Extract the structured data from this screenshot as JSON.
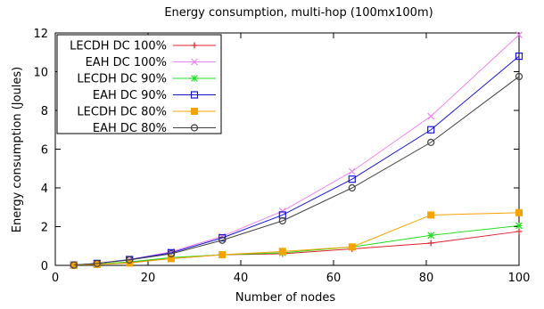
{
  "chart_data": {
    "type": "line",
    "title": "Energy consumption, multi-hop (100mx100m)",
    "xlabel": "Number of nodes",
    "ylabel": "Energy consumption (Joules)",
    "xlim": [
      0,
      100
    ],
    "ylim": [
      0,
      12
    ],
    "xticks": [
      0,
      20,
      40,
      60,
      80,
      100
    ],
    "yticks": [
      0,
      2,
      4,
      6,
      8,
      10,
      12
    ],
    "grid": false,
    "legend_position": "top-left",
    "x": [
      4,
      9,
      16,
      25,
      36,
      49,
      64,
      81,
      100
    ],
    "series": [
      {
        "name": "LECDH DC 100%",
        "color": "#e0202a",
        "marker": "plus",
        "values": [
          0.01,
          0.05,
          0.15,
          0.35,
          0.55,
          0.6,
          0.85,
          1.15,
          1.75
        ]
      },
      {
        "name": "EAH DC 100%",
        "color": "#ee82ee",
        "marker": "cross",
        "values": [
          0.02,
          0.1,
          0.3,
          0.7,
          1.5,
          2.8,
          4.85,
          7.7,
          11.9
        ]
      },
      {
        "name": "LECDH DC 90%",
        "color": "#22dd22",
        "marker": "star",
        "values": [
          0.01,
          0.06,
          0.18,
          0.4,
          0.55,
          0.65,
          0.95,
          1.55,
          2.05
        ]
      },
      {
        "name": "EAH DC 90%",
        "color": "#1515d8",
        "marker": "square-open",
        "values": [
          0.02,
          0.1,
          0.3,
          0.65,
          1.42,
          2.6,
          4.45,
          7.0,
          10.8
        ]
      },
      {
        "name": "LECDH DC 80%",
        "color": "#f5a300",
        "marker": "square-filled",
        "values": [
          0.01,
          0.05,
          0.12,
          0.35,
          0.55,
          0.72,
          0.95,
          2.6,
          2.72
        ]
      },
      {
        "name": "EAH DC 80%",
        "color": "#404040",
        "marker": "circle-open",
        "values": [
          0.02,
          0.1,
          0.28,
          0.6,
          1.3,
          2.3,
          4.0,
          6.35,
          9.75
        ]
      }
    ]
  }
}
